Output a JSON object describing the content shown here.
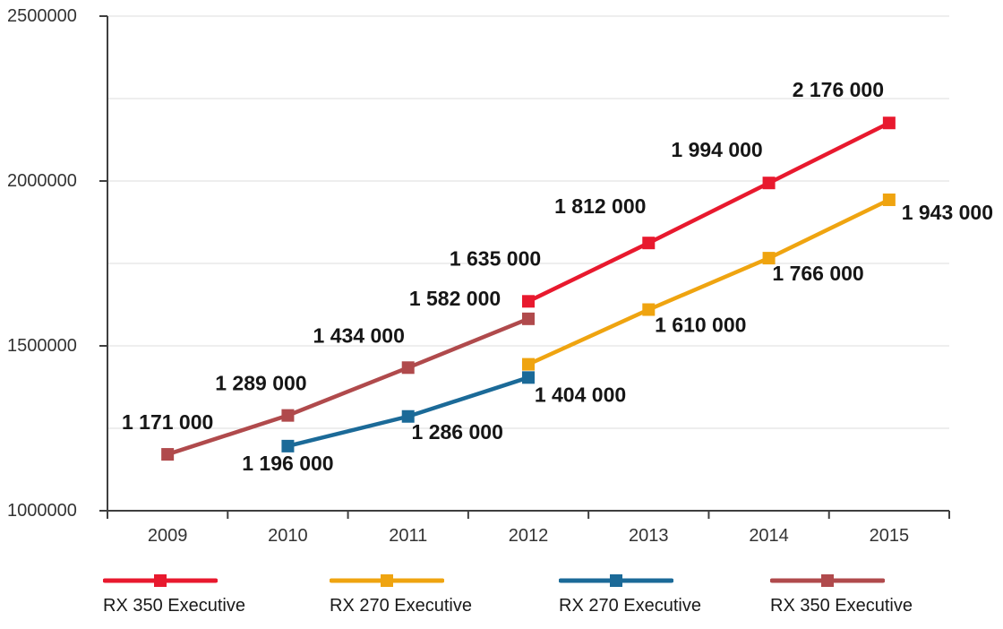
{
  "chart_data": {
    "type": "line",
    "x": [
      "2009",
      "2010",
      "2011",
      "2012",
      "2013",
      "2014",
      "2015"
    ],
    "ylim": [
      1000000,
      2500000
    ],
    "yticks": [
      {
        "value": 1000000,
        "label": "1000000"
      },
      {
        "value": 1500000,
        "label": "1500000"
      },
      {
        "value": 2000000,
        "label": "2000000"
      },
      {
        "value": 2500000,
        "label": "2500000"
      }
    ],
    "grid": true,
    "grid_step": 250000,
    "legend_position": "bottom",
    "series": [
      {
        "name": "RX 350 Executive",
        "color": "#e8192e",
        "points": [
          {
            "x": "2012",
            "y": 1635000,
            "label": "1 635 000",
            "dx": -37,
            "dy": -40
          },
          {
            "x": "2013",
            "y": 1812000,
            "label": "1 812 000",
            "dx": -54,
            "dy": -33
          },
          {
            "x": "2014",
            "y": 1994000,
            "label": "1 994 000",
            "dx": -58,
            "dy": -29
          },
          {
            "x": "2015",
            "y": 2176000,
            "label": "2 176 000",
            "dx": -57,
            "dy": -29
          }
        ]
      },
      {
        "name": "RX 270 Executive",
        "color": "#efa410",
        "points": [
          {
            "x": "2012",
            "y": 1444000,
            "label": "",
            "dx": 0,
            "dy": 0
          },
          {
            "x": "2013",
            "y": 1610000,
            "label": "1 610 000",
            "dx": 58,
            "dy": 25
          },
          {
            "x": "2014",
            "y": 1766000,
            "label": "1 766 000",
            "dx": 55,
            "dy": 25
          },
          {
            "x": "2015",
            "y": 1943000,
            "label": "1 943 000",
            "dx": 65,
            "dy": 22
          }
        ]
      },
      {
        "name": "RX 270 Executive",
        "color": "#1b6a98",
        "points": [
          {
            "x": "2010",
            "y": 1196000,
            "label": "1 196 000",
            "dx": 0,
            "dy": 27
          },
          {
            "x": "2011",
            "y": 1286000,
            "label": "1 286 000",
            "dx": 55,
            "dy": 25
          },
          {
            "x": "2012",
            "y": 1404000,
            "label": "1 404 000",
            "dx": 58,
            "dy": 27
          }
        ]
      },
      {
        "name": "RX 350 Executive",
        "color": "#b04a4c",
        "points": [
          {
            "x": "2009",
            "y": 1171000,
            "label": "1 171 000",
            "dx": 0,
            "dy": -28
          },
          {
            "x": "2010",
            "y": 1289000,
            "label": "1 289 000",
            "dx": -30,
            "dy": -28
          },
          {
            "x": "2011",
            "y": 1434000,
            "label": "1 434 000",
            "dx": -55,
            "dy": -28
          },
          {
            "x": "2012",
            "y": 1582000,
            "label": "1 582 000",
            "dx": -82,
            "dy": -15
          }
        ]
      }
    ],
    "legend": [
      {
        "label": "RX 350 Executive",
        "color": "#e8192e"
      },
      {
        "label": "RX 270 Executive",
        "color": "#efa410"
      },
      {
        "label": "RX 270 Executive",
        "color": "#1b6a98"
      },
      {
        "label": "RX 350 Executive",
        "color": "#b04a4c"
      }
    ]
  },
  "colors": {
    "axis": "#3f3f3f",
    "grid": "#dcdcdc",
    "data_label": "#161616",
    "tick_text": "#333333"
  }
}
